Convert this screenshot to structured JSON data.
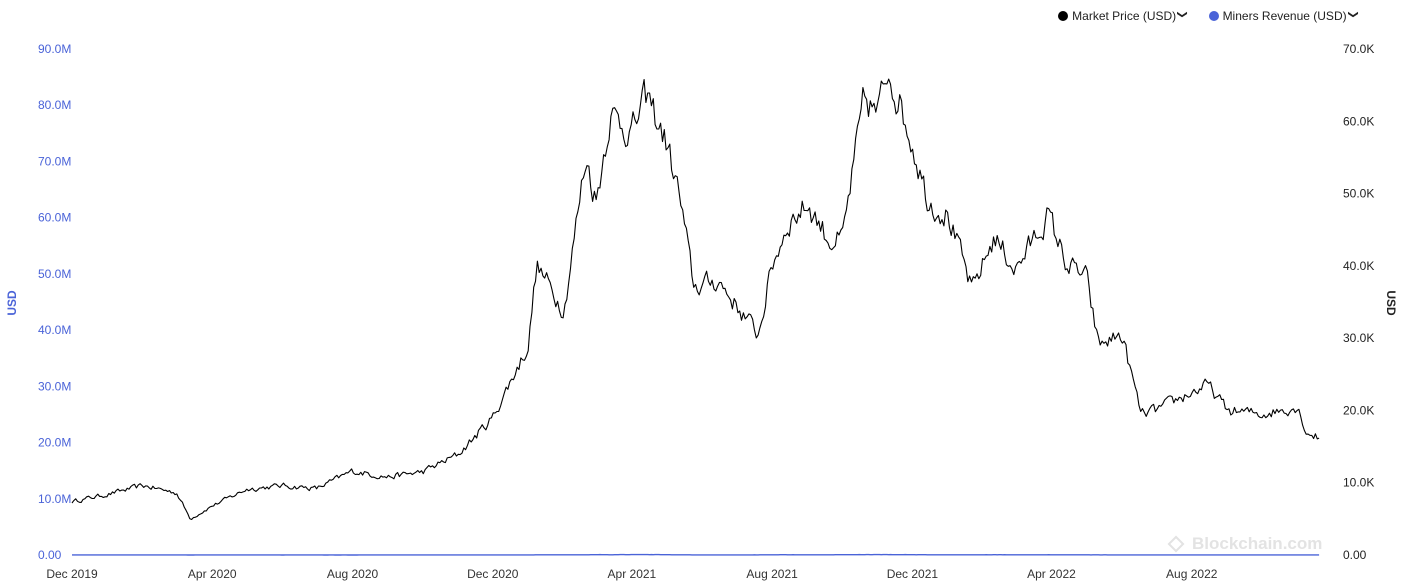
{
  "legend": {
    "items": [
      {
        "label": "Market Price (USD)",
        "color": "#000000",
        "chevron": "chevron-down-icon"
      },
      {
        "label": "Miners Revenue (USD)",
        "color": "#4a63d8",
        "chevron": "chevron-down-icon"
      }
    ]
  },
  "watermark": {
    "text": "Blockchain.com",
    "icon": "blockchain-logo-icon"
  },
  "chart_data": {
    "type": "line",
    "title": "",
    "grid": false,
    "legend_position": "top-right",
    "x_ticks": [
      "Dec 2019",
      "Apr 2020",
      "Aug 2020",
      "Dec 2020",
      "Apr 2021",
      "Aug 2021",
      "Dec 2021",
      "Apr 2022",
      "Aug 2022"
    ],
    "x_range": [
      "2019-12-01",
      "2022-12-01"
    ],
    "y_left": {
      "label": "USD",
      "range": [
        0,
        90000000
      ],
      "ticks": [
        "0.00",
        "10.0M",
        "20.0M",
        "30.0M",
        "40.0M",
        "50.0M",
        "60.0M",
        "70.0M",
        "80.0M",
        "90.0M"
      ]
    },
    "y_right": {
      "label": "USD",
      "range": [
        0,
        70000
      ],
      "ticks": [
        "0.00",
        "10.0K",
        "20.0K",
        "30.0K",
        "40.0K",
        "50.0K",
        "60.0K",
        "70.0K"
      ]
    },
    "series": [
      {
        "name": "Market Price (USD)",
        "axis": "right",
        "color": "#000000",
        "x": [
          "2019-12-01",
          "2020-01-01",
          "2020-02-01",
          "2020-03-01",
          "2020-03-13",
          "2020-04-01",
          "2020-05-01",
          "2020-06-01",
          "2020-07-01",
          "2020-08-01",
          "2020-09-01",
          "2020-10-01",
          "2020-11-01",
          "2020-12-01",
          "2021-01-01",
          "2021-01-08",
          "2021-02-01",
          "2021-02-20",
          "2021-03-01",
          "2021-03-13",
          "2021-04-01",
          "2021-04-14",
          "2021-05-01",
          "2021-05-12",
          "2021-05-25",
          "2021-06-15",
          "2021-07-01",
          "2021-07-20",
          "2021-08-01",
          "2021-08-15",
          "2021-09-01",
          "2021-09-20",
          "2021-10-01",
          "2021-10-20",
          "2021-11-01",
          "2021-11-10",
          "2021-12-01",
          "2021-12-15",
          "2022-01-01",
          "2022-01-22",
          "2022-02-10",
          "2022-03-01",
          "2022-03-29",
          "2022-04-15",
          "2022-05-01",
          "2022-05-12",
          "2022-06-01",
          "2022-06-18",
          "2022-07-01",
          "2022-08-01",
          "2022-08-15",
          "2022-09-01",
          "2022-10-01",
          "2022-11-01",
          "2022-11-09",
          "2022-11-20"
        ],
        "values": [
          7400,
          8400,
          9600,
          8600,
          5000,
          6800,
          9100,
          9600,
          9200,
          11600,
          10800,
          11500,
          13900,
          19000,
          29000,
          40000,
          34000,
          55000,
          49000,
          61000,
          58500,
          63500,
          57000,
          50000,
          37000,
          38000,
          34500,
          30500,
          40000,
          46000,
          48500,
          43500,
          43500,
          63000,
          61000,
          67500,
          57000,
          49000,
          47000,
          36500,
          44000,
          39500,
          47000,
          40000,
          38500,
          29000,
          30500,
          19500,
          20000,
          22500,
          23500,
          20000,
          19500,
          20500,
          17000,
          16200
        ]
      },
      {
        "name": "Miners Revenue (USD)",
        "axis": "left",
        "color": "#4a63d8",
        "x": [
          "2019-12-01",
          "2020-01-01",
          "2020-02-01",
          "2020-03-01",
          "2020-03-13",
          "2020-04-01",
          "2020-05-01",
          "2020-05-15",
          "2020-06-01",
          "2020-07-01",
          "2020-08-01",
          "2020-09-01",
          "2020-10-01",
          "2020-11-01",
          "2020-12-01",
          "2021-01-01",
          "2021-01-08",
          "2021-02-01",
          "2021-02-20",
          "2021-03-01",
          "2021-03-13",
          "2021-04-01",
          "2021-04-14",
          "2021-05-01",
          "2021-05-12",
          "2021-05-25",
          "2021-06-15",
          "2021-06-26",
          "2021-07-20",
          "2021-08-01",
          "2021-08-15",
          "2021-09-01",
          "2021-09-20",
          "2021-10-01",
          "2021-10-20",
          "2021-11-01",
          "2021-11-10",
          "2021-12-01",
          "2021-12-15",
          "2022-01-01",
          "2022-01-22",
          "2022-02-10",
          "2022-03-01",
          "2022-03-29",
          "2022-04-15",
          "2022-05-01",
          "2022-05-12",
          "2022-06-01",
          "2022-06-18",
          "2022-07-01",
          "2022-08-01",
          "2022-08-15",
          "2022-09-01",
          "2022-10-01",
          "2022-11-01",
          "2022-11-09",
          "2022-11-20"
        ],
        "values": [
          14000,
          15500,
          17000,
          18000,
          8000,
          13000,
          16500,
          19000,
          9500,
          10000,
          9000,
          12000,
          11000,
          12500,
          14500,
          18000,
          30000,
          40000,
          32000,
          56000,
          50000,
          60000,
          68000,
          52000,
          37000,
          25000,
          19000,
          15000,
          28000,
          42000,
          46000,
          35000,
          38000,
          52000,
          62000,
          60000,
          65000,
          50000,
          45000,
          36000,
          33000,
          44000,
          37000,
          41000,
          36000,
          29000,
          24000,
          22000,
          16000,
          16000,
          20000,
          19000,
          18000,
          16500,
          17500,
          13000,
          11000
        ]
      }
    ]
  }
}
